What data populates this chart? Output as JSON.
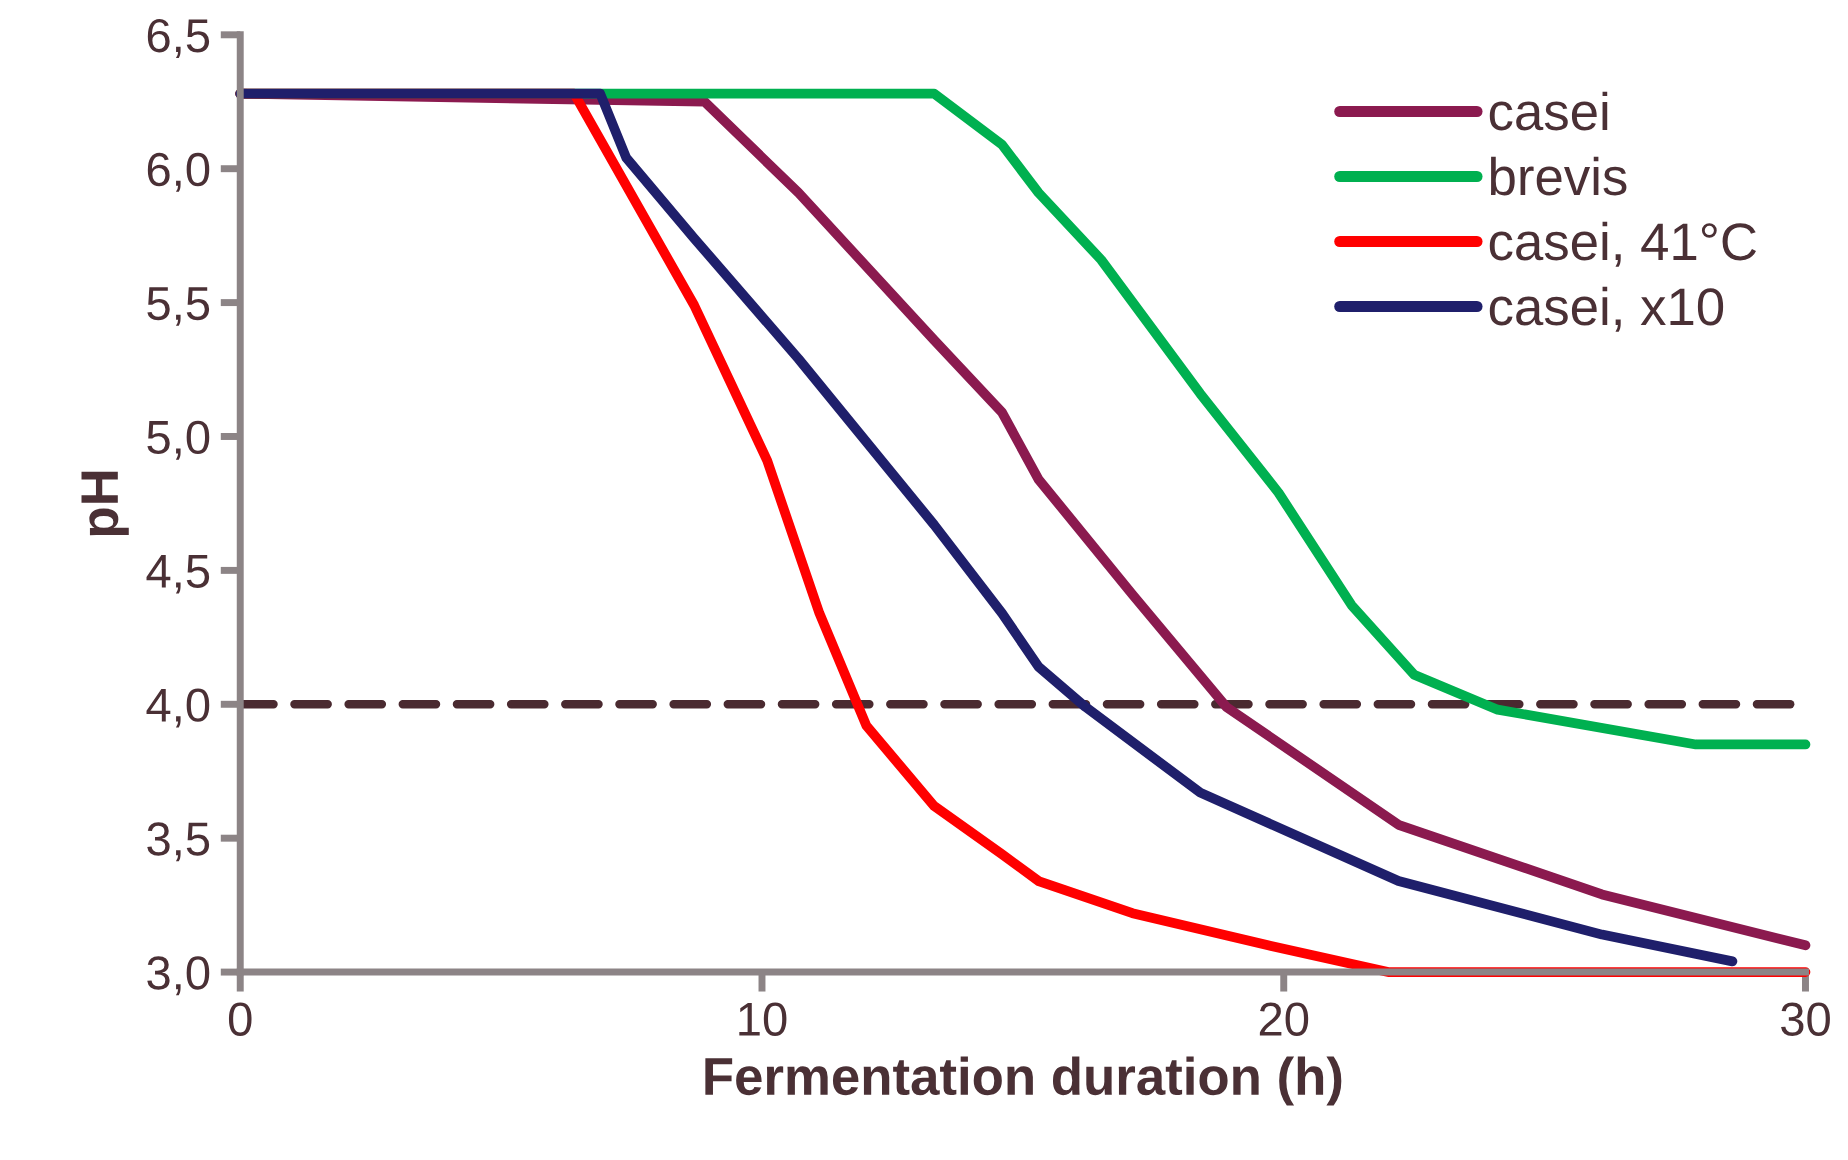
{
  "chart_data": {
    "type": "line",
    "xlabel": "Fermentation duration (h)",
    "ylabel": "pH",
    "xlim": [
      0,
      30
    ],
    "xticks": [
      0,
      10,
      20,
      30
    ],
    "ylim": [
      3.0,
      6.5
    ],
    "yticks": [
      {
        "value": 3.0,
        "label": "3,0"
      },
      {
        "value": 3.5,
        "label": "3,5"
      },
      {
        "value": 4.0,
        "label": "4,0"
      },
      {
        "value": 4.5,
        "label": "4,5"
      },
      {
        "value": 5.0,
        "label": "5,0"
      },
      {
        "value": 5.5,
        "label": "5,5"
      },
      {
        "value": 6.0,
        "label": "6,0"
      },
      {
        "value": 6.5,
        "label": "6,5"
      }
    ],
    "grid": false,
    "legend": "top right",
    "marker": "none",
    "line_style": "solid",
    "series": [
      {
        "name": "casei",
        "color": "#8b1a4f",
        "x": [
          0,
          8.9,
          10.7,
          13.3,
          14.6,
          15.3,
          17.1,
          18.9,
          22.2,
          26.1,
          30
        ],
        "values": [
          6.28,
          6.25,
          5.91,
          5.36,
          5.09,
          4.84,
          4.41,
          3.99,
          3.55,
          3.29,
          3.1
        ]
      },
      {
        "name": "brevis",
        "color": "#00b050",
        "x": [
          0,
          13.3,
          14.6,
          15.3,
          16.5,
          18.4,
          19.9,
          21.3,
          22.5,
          24.1,
          27.9,
          30
        ],
        "values": [
          6.28,
          6.28,
          6.09,
          5.91,
          5.66,
          5.16,
          4.79,
          4.37,
          4.11,
          3.98,
          3.85,
          3.85
        ]
      },
      {
        "name": "casei, 41°C",
        "color": "#ff0000",
        "x": [
          0,
          6.4,
          8.7,
          10.1,
          11.1,
          12.0,
          13.3,
          14.6,
          15.3,
          17.1,
          19.7,
          22.0,
          30
        ],
        "values": [
          6.28,
          6.28,
          5.49,
          4.91,
          4.34,
          3.92,
          3.62,
          3.44,
          3.34,
          3.22,
          3.1,
          3.0,
          3.0
        ]
      },
      {
        "name": "casei, x10",
        "color": "#1f1f6b",
        "x": [
          0,
          6.9,
          7.4,
          8.7,
          10.7,
          13.3,
          14.6,
          15.3,
          16.2,
          18.4,
          22.2,
          26.1,
          28.6
        ],
        "values": [
          6.28,
          6.28,
          6.04,
          5.74,
          5.29,
          4.67,
          4.34,
          4.14,
          3.99,
          3.67,
          3.34,
          3.14,
          3.04
        ]
      }
    ],
    "ref_lines": [
      {
        "axis": "y",
        "value": 4.0,
        "color": "#4a2a30",
        "line_style": "dashed"
      }
    ]
  }
}
